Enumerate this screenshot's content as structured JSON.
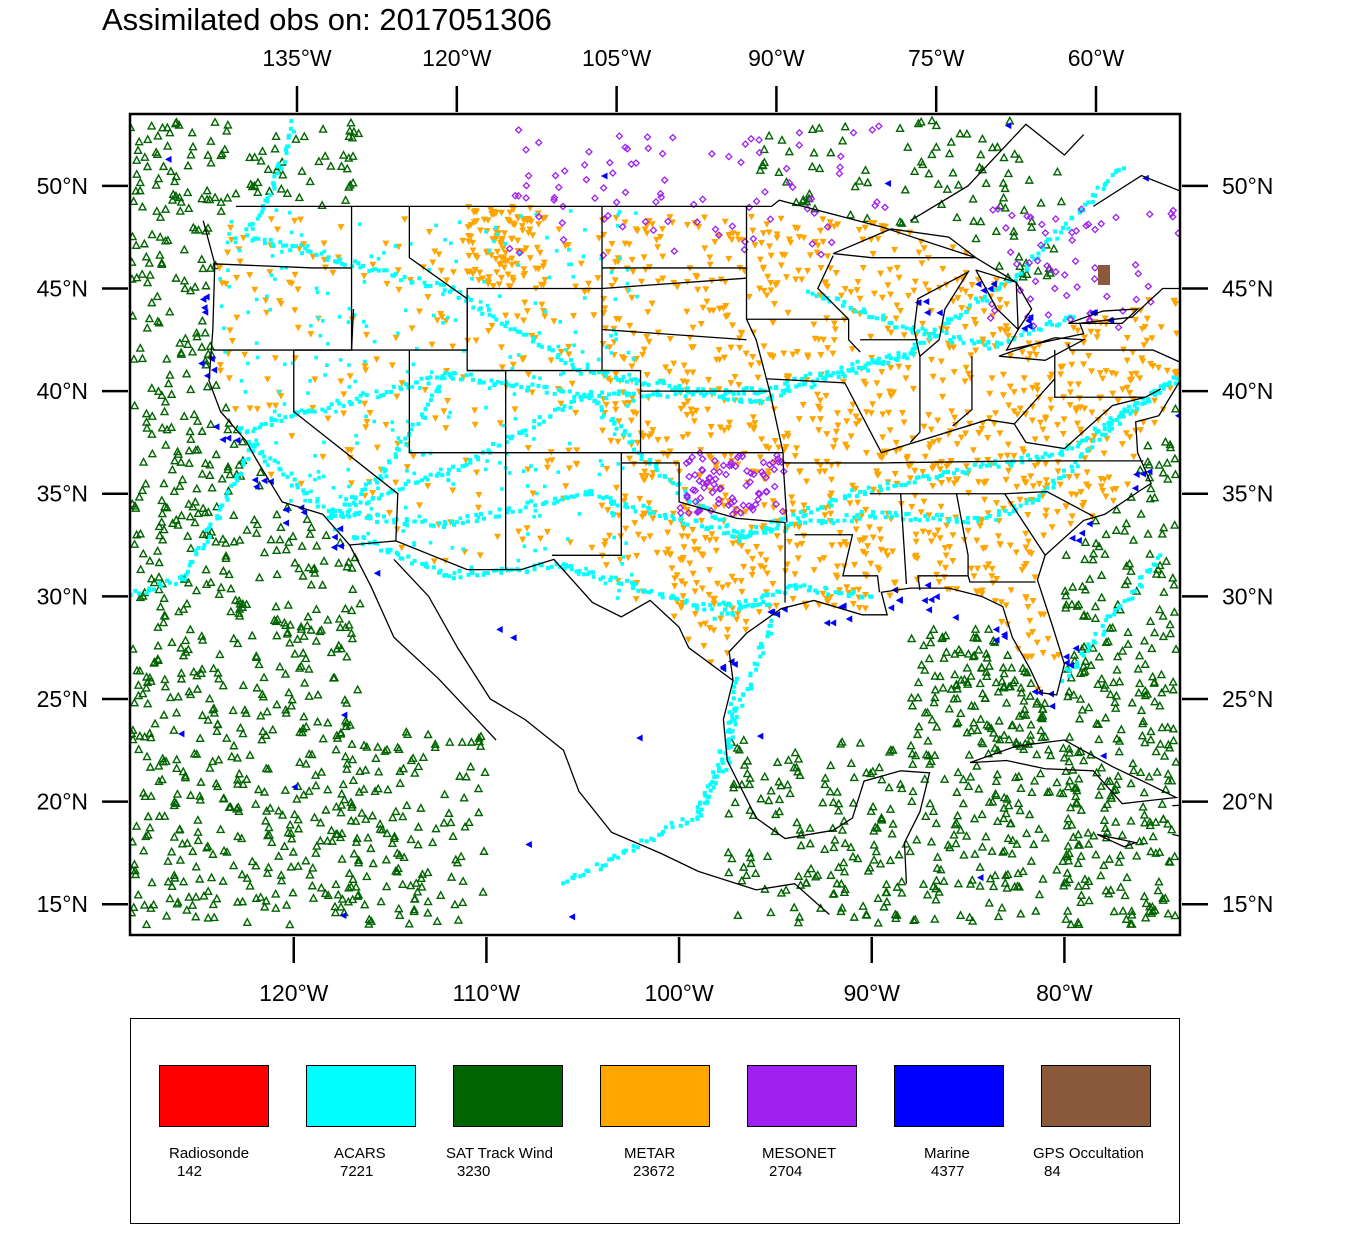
{
  "title": "Assimilated obs on: 2017051306",
  "map": {
    "lat_range": [
      13.5,
      53.5
    ],
    "lon_range": [
      -128.5,
      -74
    ],
    "top_lon_ticks": [
      {
        "lon": -135,
        "label": "135°W"
      },
      {
        "lon": -120,
        "label": "120°W"
      },
      {
        "lon": -105,
        "label": "105°W"
      },
      {
        "lon": -90,
        "label": "90°W"
      },
      {
        "lon": -75,
        "label": "75°W"
      },
      {
        "lon": -60,
        "label": "60°W"
      }
    ],
    "bottom_lon_ticks": [
      {
        "lon": -120,
        "label": "120°W"
      },
      {
        "lon": -110,
        "label": "110°W"
      },
      {
        "lon": -100,
        "label": "100°W"
      },
      {
        "lon": -90,
        "label": "90°W"
      },
      {
        "lon": -80,
        "label": "80°W"
      }
    ],
    "lat_ticks": [
      {
        "lat": 50,
        "label": "50°N"
      },
      {
        "lat": 45,
        "label": "45°N"
      },
      {
        "lat": 40,
        "label": "40°N"
      },
      {
        "lat": 35,
        "label": "35°N"
      },
      {
        "lat": 30,
        "label": "30°N"
      },
      {
        "lat": 25,
        "label": "25°N"
      },
      {
        "lat": 20,
        "label": "20°N"
      },
      {
        "lat": 15,
        "label": "15°N"
      }
    ],
    "colors": {
      "coast": "#000000",
      "sat": "#006400",
      "acars": "#00ffff",
      "metar": "#ffa500",
      "mesonet": "#a020f0",
      "marine": "#0000ff",
      "gps": "#8b5a3c"
    }
  },
  "legend": [
    {
      "name": "Radiosonde",
      "count": "142",
      "color": "#ff0000"
    },
    {
      "name": "ACARS",
      "count": "7221",
      "color": "#00ffff"
    },
    {
      "name": "SAT Track Wind",
      "count": "3230",
      "color": "#006400"
    },
    {
      "name": "METAR",
      "count": "23672",
      "color": "#ffa500"
    },
    {
      "name": "MESONET",
      "count": "2704",
      "color": "#a020f0"
    },
    {
      "name": "Marine",
      "count": "4377",
      "color": "#0000ff"
    },
    {
      "name": "GPS Occultation",
      "count": "84",
      "color": "#8b5a3c"
    }
  ]
}
